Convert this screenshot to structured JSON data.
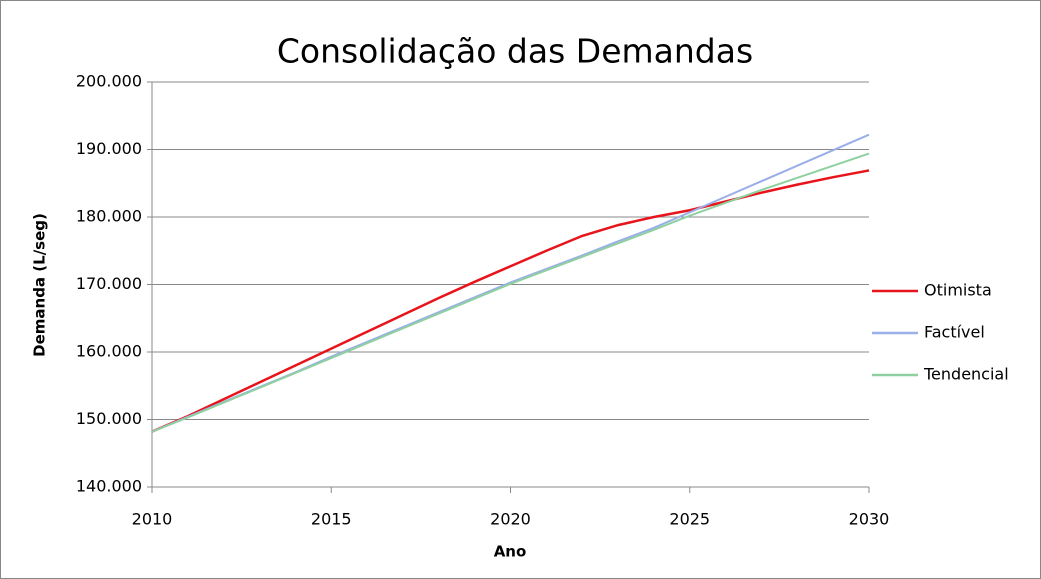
{
  "chart_data": {
    "type": "line",
    "title": "Consolidação das Demandas",
    "x_label": "Ano",
    "y_label": "Demanda (L/seg)",
    "x": [
      2010,
      2011,
      2012,
      2013,
      2014,
      2015,
      2016,
      2017,
      2018,
      2019,
      2020,
      2021,
      2022,
      2023,
      2024,
      2025,
      2026,
      2027,
      2028,
      2029,
      2030
    ],
    "series": [
      {
        "name": "Otimista",
        "color": "#e8141c",
        "values": [
          148200,
          150500,
          153000,
          155500,
          158000,
          160500,
          163000,
          165500,
          168000,
          170400,
          172700,
          175000,
          177200,
          178800,
          180000,
          181000,
          182300,
          183600,
          184800,
          185900,
          186900
        ]
      },
      {
        "name": "Factível",
        "color": "#9aaee8",
        "values": [
          148200,
          150400,
          152600,
          154800,
          157000,
          159300,
          161500,
          163700,
          165900,
          168100,
          170300,
          172300,
          174300,
          176400,
          178400,
          180700,
          183000,
          185300,
          187600,
          189900,
          192200
        ]
      },
      {
        "name": "Tendencial",
        "color": "#8fd0a0",
        "values": [
          148200,
          150300,
          152500,
          154700,
          156900,
          159100,
          161300,
          163500,
          165700,
          167900,
          170100,
          172100,
          174100,
          176100,
          178100,
          180200,
          182100,
          184000,
          185800,
          187600,
          189400
        ]
      }
    ],
    "xlim": [
      2010,
      2030
    ],
    "xticks": [
      2010,
      2015,
      2020,
      2025,
      2030
    ],
    "ylim": [
      140000,
      200000
    ],
    "yticks": [
      {
        "value": 140000,
        "label": "140.000"
      },
      {
        "value": 150000,
        "label": "150.000"
      },
      {
        "value": 160000,
        "label": "160.000"
      },
      {
        "value": 170000,
        "label": "170.000"
      },
      {
        "value": 180000,
        "label": "180.000"
      },
      {
        "value": 190000,
        "label": "190.000"
      },
      {
        "value": 200000,
        "label": "200.000"
      }
    ],
    "grid": true,
    "legend": "right"
  }
}
